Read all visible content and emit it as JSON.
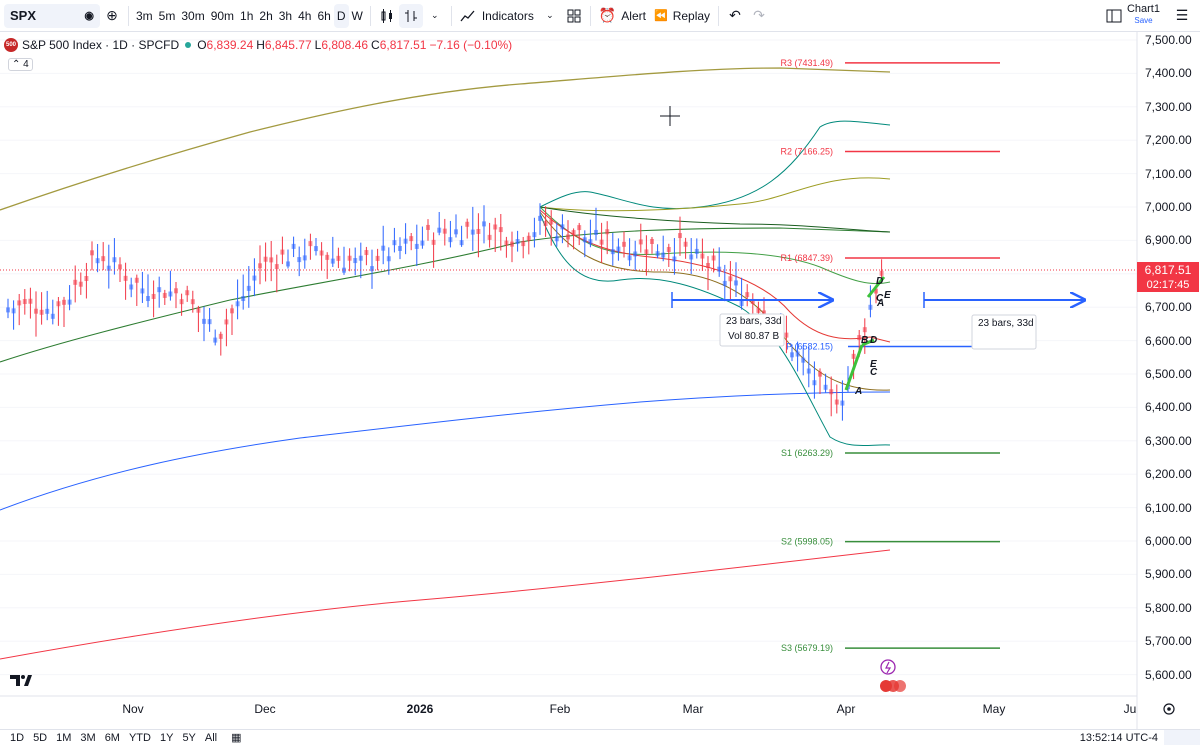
{
  "toolbar": {
    "symbol": "SPX",
    "intervals": [
      "3m",
      "5m",
      "30m",
      "90m",
      "1h",
      "2h",
      "3h",
      "4h",
      "6h",
      "D",
      "W"
    ],
    "active_interval": "D",
    "indicators_label": "Indicators",
    "alert_label": "Alert",
    "replay_label": "Replay",
    "chart_name": "Chart1",
    "save_label": "Save"
  },
  "legend": {
    "title": "S&P 500 Index · 1D · SPCFD",
    "logo_text": "500",
    "o_label": "O",
    "open": "6,839.24",
    "h_label": "H",
    "high": "6,845.77",
    "l_label": "L",
    "low": "6,808.46",
    "c_label": "C",
    "close": "6,817.51",
    "change": "−7.16 (−0.10%)",
    "indicator_count": "4"
  },
  "price_scale": {
    "ticks": [
      "7,500.00",
      "7,400.00",
      "7,300.00",
      "7,200.00",
      "7,100.00",
      "7,000.00",
      "6,900.00",
      "6,800.00",
      "6,700.00",
      "6,600.00",
      "6,500.00",
      "6,400.00",
      "6,300.00",
      "6,200.00",
      "6,100.00",
      "6,000.00",
      "5,900.00",
      "5,800.00",
      "5,700.00",
      "5,600.00"
    ],
    "last_price": "6,817.51",
    "countdown": "02:17:45"
  },
  "time_scale": {
    "labels": [
      "Nov",
      "Dec",
      "2026",
      "Feb",
      "Mar",
      "Apr",
      "May",
      "Ju"
    ]
  },
  "pivots": [
    {
      "label": "R3 (7431.49)",
      "value": 7431.49,
      "color": "#f23645"
    },
    {
      "label": "R2 (7166.25)",
      "value": 7166.25,
      "color": "#f23645"
    },
    {
      "label": "R1 (6847.39)",
      "value": 6847.39,
      "color": "#f23645"
    },
    {
      "label": "P (6582.15)",
      "value": 6582.15,
      "color": "#2962ff"
    },
    {
      "label": "S1 (6263.29)",
      "value": 6263.29,
      "color": "#388e3c"
    },
    {
      "label": "S2 (5998.05)",
      "value": 5998.05,
      "color": "#388e3c"
    },
    {
      "label": "S3 (5679.19)",
      "value": 5679.19,
      "color": "#388e3c"
    }
  ],
  "annotations": {
    "range_label_1": "23 bars, 33d",
    "vol_label": "Vol 80.87 B",
    "range_label_2": "23 bars, 33d",
    "pattern_letters": [
      "A",
      "B",
      "C",
      "D",
      "E"
    ]
  },
  "bottom": {
    "ranges": [
      "1D",
      "5D",
      "1M",
      "3M",
      "6M",
      "YTD",
      "1Y",
      "5Y",
      "All"
    ],
    "clock": "13:52:14 UTC-4"
  },
  "brand": {
    "accent": "#2962ff",
    "up": "#2962ff",
    "down": "#f23645"
  }
}
